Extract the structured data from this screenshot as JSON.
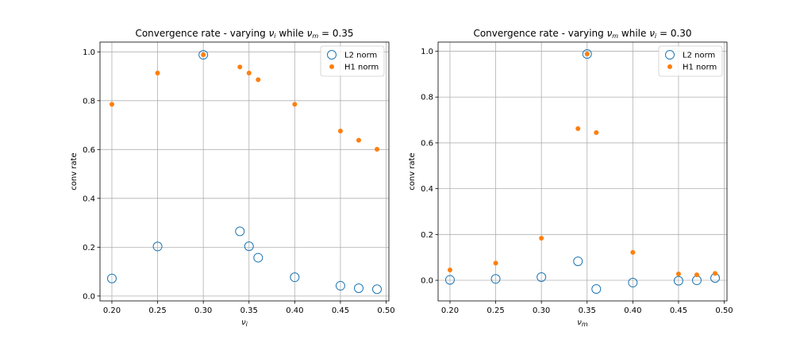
{
  "chart_data": [
    {
      "type": "scatter",
      "title_text": "Convergence rate - varying ",
      "title_sym": "ν",
      "title_sub": "i",
      "title_mid": " while ",
      "title_sym2": "ν",
      "title_sub2": "m",
      "title_end": " = 0.35",
      "xlabel_sym": "ν",
      "xlabel_sub": "i",
      "ylabel": "conv rate",
      "xlim": [
        0.187,
        0.503
      ],
      "ylim": [
        -0.02,
        1.04
      ],
      "xticks": [
        "0.20",
        "0.25",
        "0.30",
        "0.35",
        "0.40",
        "0.45",
        "0.50"
      ],
      "yticks": [
        "0.0",
        "0.2",
        "0.4",
        "0.6",
        "0.8",
        "1.0"
      ],
      "grid": true,
      "legend_position": "top-right",
      "x": [
        0.2,
        0.25,
        0.3,
        0.34,
        0.35,
        0.36,
        0.4,
        0.45,
        0.47,
        0.49
      ],
      "series": [
        {
          "name": "L2 norm",
          "marker": "open-circle",
          "color": "#1f77b4",
          "values": [
            0.072,
            0.203,
            0.988,
            0.265,
            0.204,
            0.157,
            0.077,
            0.042,
            0.032,
            0.028
          ]
        },
        {
          "name": "H1 norm",
          "marker": "filled-dot",
          "color": "#ff7f0e",
          "values": [
            0.785,
            0.913,
            0.988,
            0.938,
            0.913,
            0.886,
            0.785,
            0.676,
            0.638,
            0.601
          ]
        }
      ]
    },
    {
      "type": "scatter",
      "title_text": "Convergence rate - varying ",
      "title_sym": "ν",
      "title_sub": "m",
      "title_mid": " while ",
      "title_sym2": "ν",
      "title_sub2": "i",
      "title_end": " = 0.30",
      "xlabel_sym": "ν",
      "xlabel_sub": "m",
      "ylabel": "conv rate",
      "xlim": [
        0.187,
        0.503
      ],
      "ylim": [
        -0.09,
        1.04
      ],
      "xticks": [
        "0.20",
        "0.25",
        "0.30",
        "0.35",
        "0.40",
        "0.45",
        "0.50"
      ],
      "yticks": [
        "0.0",
        "0.2",
        "0.4",
        "0.6",
        "0.8",
        "1.0"
      ],
      "grid": true,
      "legend_position": "top-right",
      "x": [
        0.2,
        0.25,
        0.3,
        0.34,
        0.35,
        0.36,
        0.4,
        0.45,
        0.47,
        0.49
      ],
      "series": [
        {
          "name": "L2 norm",
          "marker": "open-circle",
          "color": "#1f77b4",
          "values": [
            0.002,
            0.006,
            0.014,
            0.083,
            0.988,
            -0.038,
            -0.01,
            -0.002,
            0.0,
            0.01
          ]
        },
        {
          "name": "H1 norm",
          "marker": "filled-dot",
          "color": "#ff7f0e",
          "values": [
            0.045,
            0.075,
            0.184,
            0.662,
            0.988,
            0.645,
            0.122,
            0.028,
            0.024,
            0.03
          ]
        }
      ]
    }
  ]
}
